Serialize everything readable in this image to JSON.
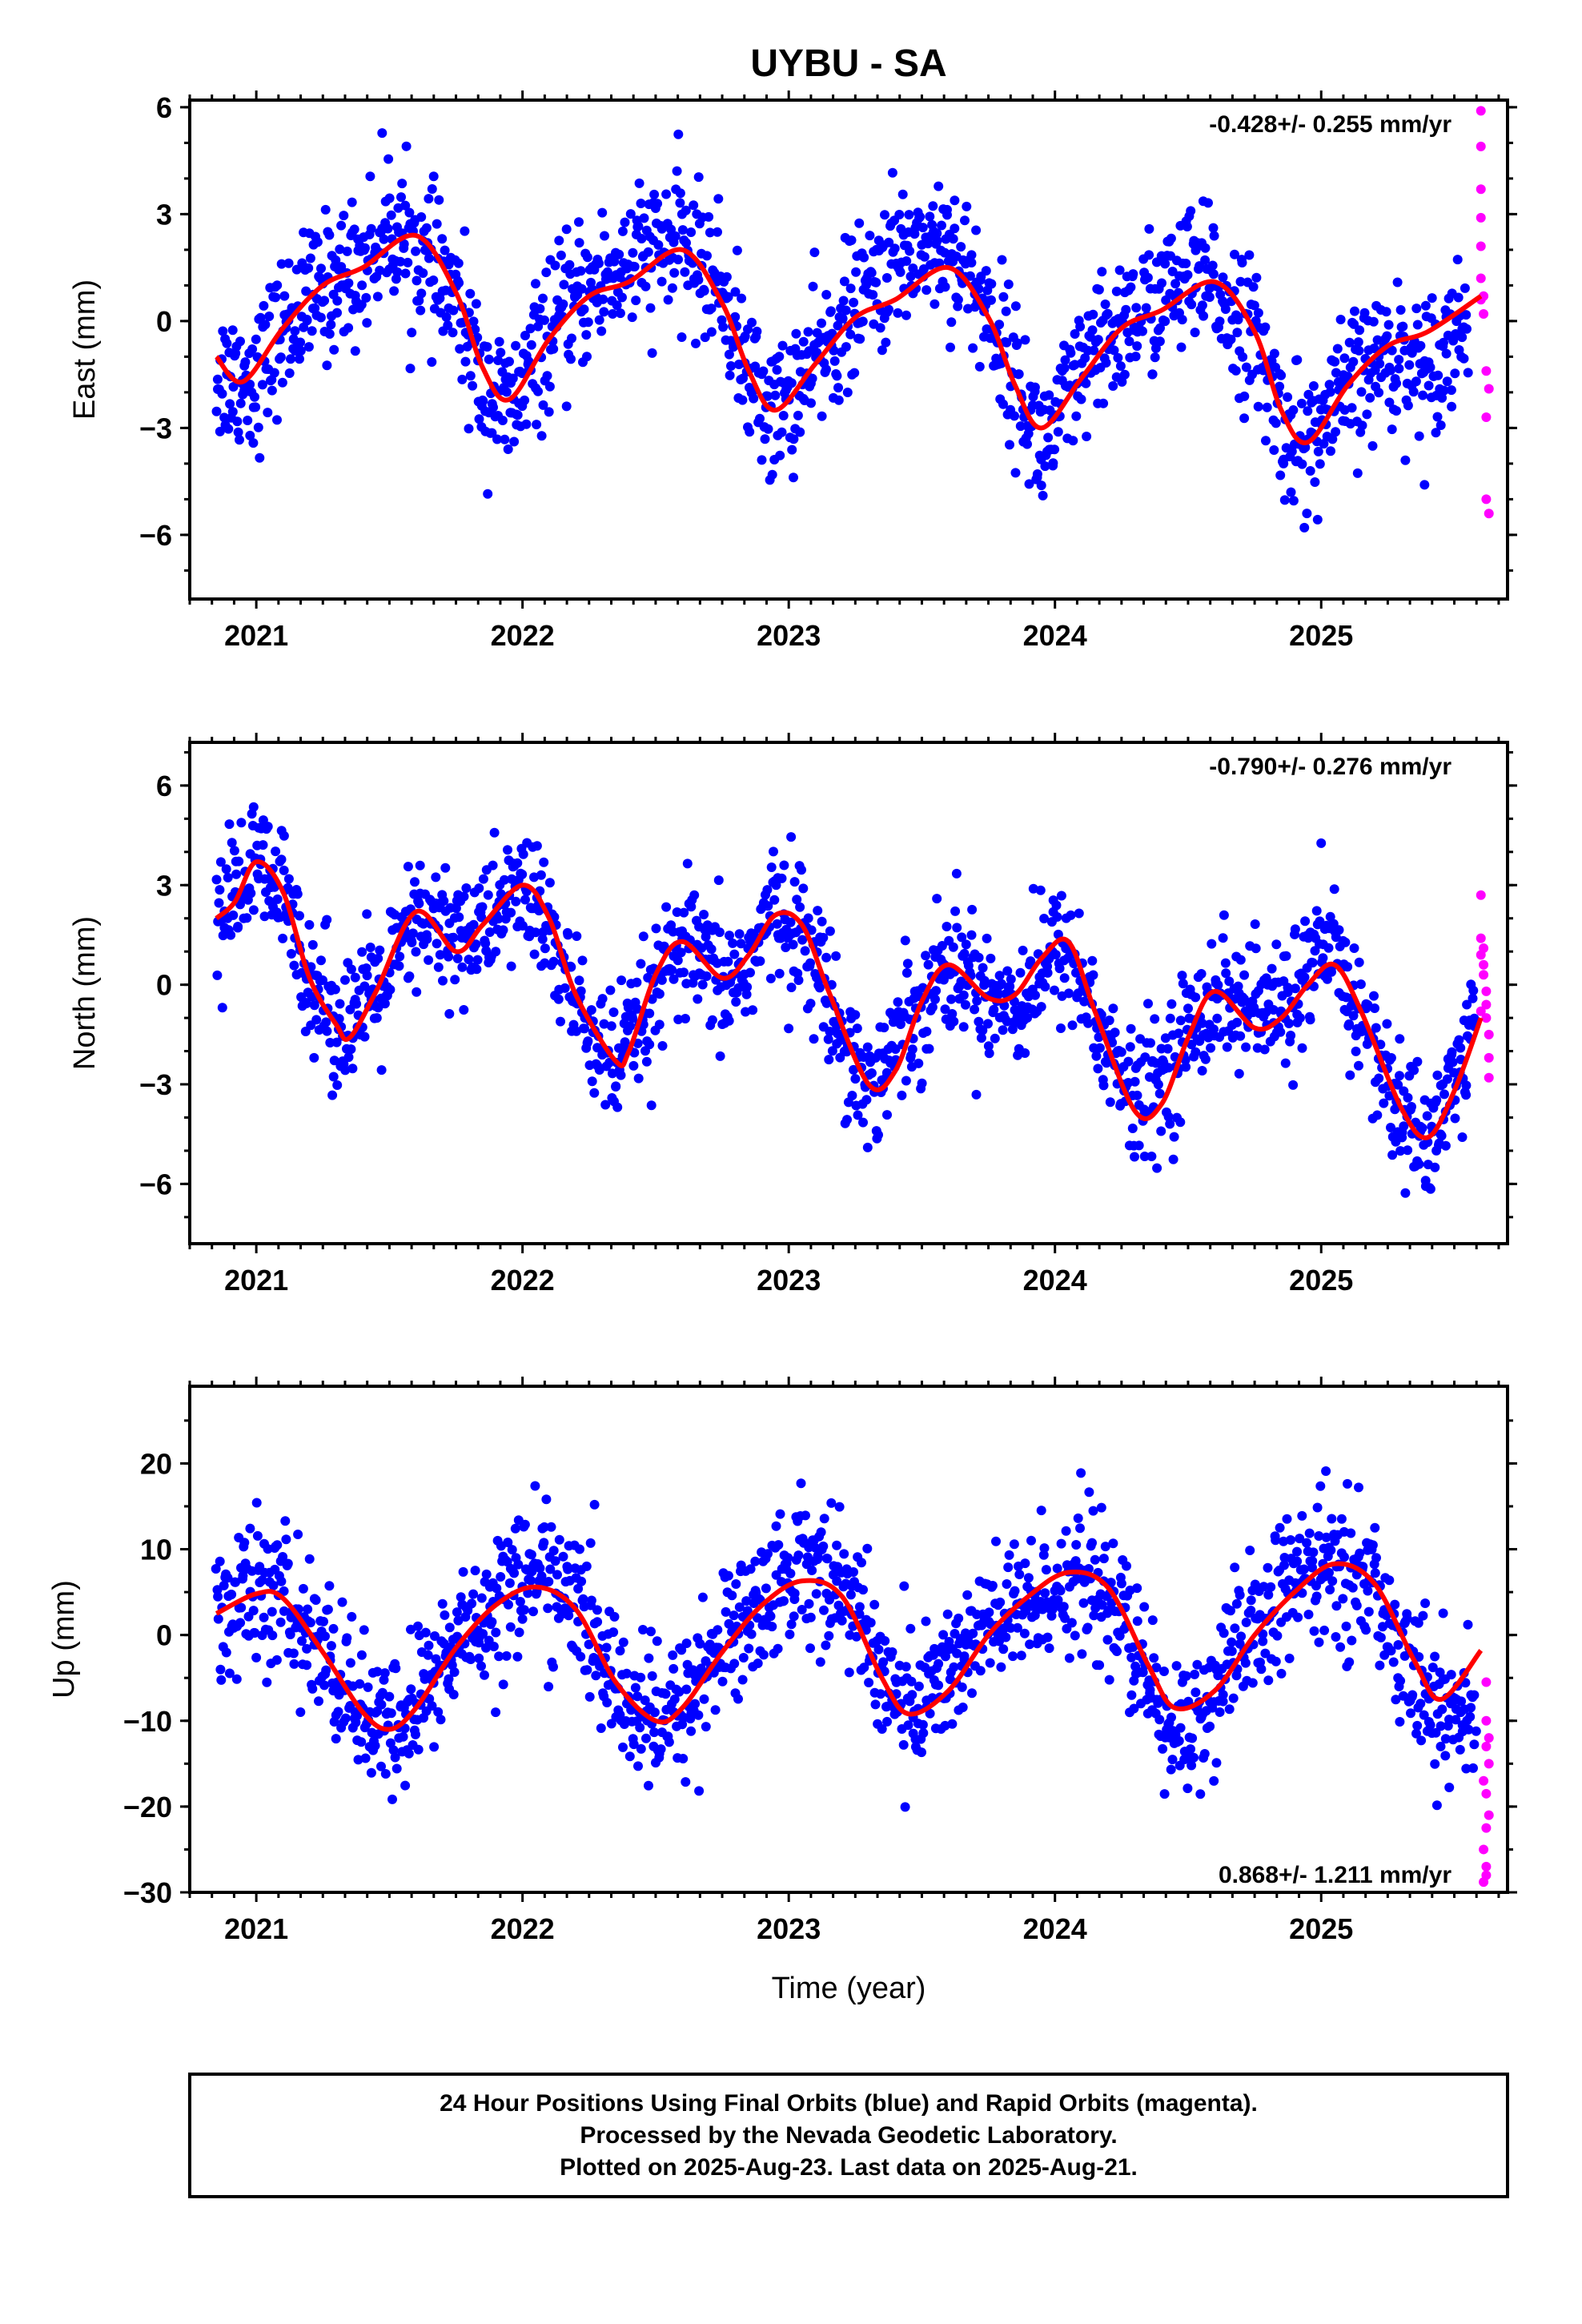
{
  "title": "UYBU - SA",
  "xlabel": "Time (year)",
  "footer": {
    "line1": "24 Hour Positions Using Final Orbits (blue) and Rapid Orbits (magenta).",
    "line2": "Processed by the Nevada Geodetic Laboratory.",
    "line3": "Plotted on 2025-Aug-23. Last data on 2025-Aug-21."
  },
  "colors": {
    "final": "#0000ff",
    "rapid": "#ff00ff",
    "fit": "#ff0000",
    "frame": "#000000"
  },
  "chart_data": [
    {
      "type": "scatter",
      "name": "East",
      "ylabel": "East (mm)",
      "rate_text": "-0.428+/- 0.255 mm/yr",
      "rate_position": "top-right",
      "xlim": [
        2020.75,
        2025.7
      ],
      "ylim": [
        -7.8,
        6.2
      ],
      "xticks": [
        2021,
        2022,
        2023,
        2024,
        2025
      ],
      "yticks": [
        -6,
        -3,
        0,
        3,
        6
      ],
      "ytick_labels": [
        "−6",
        "−3",
        "0",
        "3",
        "6"
      ],
      "fit_curve": {
        "x": [
          2020.85,
          2020.95,
          2021.1,
          2021.25,
          2021.4,
          2021.6,
          2021.75,
          2021.85,
          2021.95,
          2022.1,
          2022.25,
          2022.4,
          2022.6,
          2022.75,
          2022.85,
          2022.95,
          2023.1,
          2023.25,
          2023.4,
          2023.6,
          2023.75,
          2023.85,
          2023.95,
          2024.1,
          2024.25,
          2024.4,
          2024.6,
          2024.75,
          2024.85,
          2024.95,
          2025.1,
          2025.25,
          2025.4,
          2025.6
        ],
        "y": [
          -1.0,
          -1.7,
          -0.2,
          1.0,
          1.5,
          2.4,
          0.8,
          -1.3,
          -2.2,
          -0.5,
          0.7,
          1.1,
          2.0,
          0.5,
          -1.4,
          -2.5,
          -1.2,
          0.1,
          0.6,
          1.5,
          0.1,
          -1.8,
          -3.0,
          -1.6,
          -0.2,
          0.3,
          1.1,
          -0.3,
          -2.5,
          -3.4,
          -1.8,
          -0.7,
          -0.3,
          0.7
        ]
      },
      "final_trend": [
        [
          2020.85,
          -1.5
        ],
        [
          2021.0,
          -1.6
        ],
        [
          2021.1,
          -0.2
        ],
        [
          2021.25,
          0.9
        ],
        [
          2021.4,
          1.6
        ],
        [
          2021.5,
          2.7
        ],
        [
          2021.6,
          2.0
        ],
        [
          2021.75,
          0.5
        ],
        [
          2021.85,
          -1.8
        ],
        [
          2021.95,
          -2.6
        ],
        [
          2022.1,
          -0.4
        ],
        [
          2022.25,
          0.9
        ],
        [
          2022.4,
          1.6
        ],
        [
          2022.5,
          2.0
        ],
        [
          2022.6,
          2.2
        ],
        [
          2022.75,
          0.9
        ],
        [
          2022.85,
          -1.6
        ],
        [
          2022.95,
          -2.6
        ],
        [
          2023.1,
          -1.2
        ],
        [
          2023.25,
          0.4
        ],
        [
          2023.4,
          1.7
        ],
        [
          2023.5,
          2.2
        ],
        [
          2023.6,
          2.2
        ],
        [
          2023.75,
          0.3
        ],
        [
          2023.85,
          -1.6
        ],
        [
          2023.95,
          -3.6
        ],
        [
          2024.1,
          -1.6
        ],
        [
          2024.25,
          -0.1
        ],
        [
          2024.4,
          0.7
        ],
        [
          2024.5,
          1.2
        ],
        [
          2024.6,
          1.0
        ],
        [
          2024.75,
          -0.5
        ],
        [
          2024.85,
          -2.8
        ],
        [
          2024.95,
          -3.6
        ],
        [
          2025.1,
          -1.9
        ],
        [
          2025.25,
          -0.9
        ],
        [
          2025.4,
          -1.3
        ],
        [
          2025.55,
          0.2
        ]
      ],
      "final_scatter": 1.0,
      "rapid_points": [
        [
          2025.6,
          5.9
        ],
        [
          2025.6,
          4.9
        ],
        [
          2025.6,
          3.7
        ],
        [
          2025.6,
          2.9
        ],
        [
          2025.6,
          2.1
        ],
        [
          2025.6,
          1.2
        ],
        [
          2025.61,
          0.7
        ],
        [
          2025.61,
          0.2
        ],
        [
          2025.62,
          -1.4
        ],
        [
          2025.62,
          -2.7
        ],
        [
          2025.62,
          -5.0
        ],
        [
          2025.63,
          -5.4
        ],
        [
          2025.63,
          -1.9
        ],
        [
          2025.6,
          0.6
        ]
      ]
    },
    {
      "type": "scatter",
      "name": "North",
      "ylabel": "North (mm)",
      "rate_text": "-0.790+/- 0.276 mm/yr",
      "rate_position": "top-right",
      "xlim": [
        2020.75,
        2025.7
      ],
      "ylim": [
        -7.8,
        7.3
      ],
      "xticks": [
        2021,
        2022,
        2023,
        2024,
        2025
      ],
      "yticks": [
        -6,
        -3,
        0,
        3,
        6
      ],
      "ytick_labels": [
        "−6",
        "−3",
        "0",
        "3",
        "6"
      ],
      "fit_curve": {
        "x": [
          2020.85,
          2020.92,
          2021.0,
          2021.1,
          2021.2,
          2021.3,
          2021.35,
          2021.45,
          2021.6,
          2021.75,
          2021.85,
          2022.0,
          2022.1,
          2022.2,
          2022.35,
          2022.4,
          2022.5,
          2022.6,
          2022.75,
          2022.85,
          2022.95,
          2023.05,
          2023.15,
          2023.3,
          2023.4,
          2023.5,
          2023.6,
          2023.75,
          2023.85,
          2023.95,
          2024.05,
          2024.15,
          2024.3,
          2024.4,
          2024.5,
          2024.6,
          2024.75,
          2024.85,
          2024.95,
          2025.05,
          2025.15,
          2025.3,
          2025.4,
          2025.5,
          2025.6
        ],
        "y": [
          2.0,
          2.5,
          3.7,
          2.8,
          0.2,
          -1.2,
          -1.6,
          -0.2,
          2.2,
          1.0,
          1.8,
          3.0,
          2.0,
          -0.3,
          -2.3,
          -2.0,
          0.3,
          1.3,
          0.2,
          0.9,
          2.1,
          1.8,
          -0.2,
          -3.0,
          -2.6,
          -0.5,
          0.6,
          -0.4,
          -0.3,
          0.8,
          1.3,
          -0.8,
          -3.8,
          -3.6,
          -1.6,
          -0.2,
          -1.3,
          -1.0,
          0.0,
          0.6,
          -0.8,
          -3.7,
          -4.6,
          -3.2,
          -1.0
        ]
      },
      "final_trend": [
        [
          2020.85,
          2.0
        ],
        [
          2021.0,
          3.6
        ],
        [
          2021.1,
          2.6
        ],
        [
          2021.2,
          0.4
        ],
        [
          2021.3,
          -1.2
        ],
        [
          2021.45,
          -0.4
        ],
        [
          2021.6,
          1.8
        ],
        [
          2021.75,
          1.5
        ],
        [
          2021.85,
          1.7
        ],
        [
          2022.0,
          3.0
        ],
        [
          2022.1,
          1.6
        ],
        [
          2022.2,
          -0.6
        ],
        [
          2022.35,
          -2.6
        ],
        [
          2022.5,
          -0.4
        ],
        [
          2022.6,
          1.2
        ],
        [
          2022.75,
          -0.1
        ],
        [
          2022.85,
          0.7
        ],
        [
          2022.95,
          2.3
        ],
        [
          2023.05,
          1.7
        ],
        [
          2023.15,
          -0.4
        ],
        [
          2023.3,
          -3.2
        ],
        [
          2023.45,
          -1.0
        ],
        [
          2023.6,
          0.7
        ],
        [
          2023.75,
          -0.2
        ],
        [
          2023.85,
          -0.6
        ],
        [
          2023.95,
          0.5
        ],
        [
          2024.05,
          1.2
        ],
        [
          2024.15,
          -1.0
        ],
        [
          2024.3,
          -3.7
        ],
        [
          2024.45,
          -2.2
        ],
        [
          2024.6,
          -0.2
        ],
        [
          2024.75,
          -0.8
        ],
        [
          2024.85,
          -0.8
        ],
        [
          2024.95,
          0.5
        ],
        [
          2025.05,
          0.9
        ],
        [
          2025.15,
          -1.0
        ],
        [
          2025.3,
          -4.0
        ],
        [
          2025.4,
          -4.6
        ],
        [
          2025.5,
          -3.0
        ],
        [
          2025.58,
          -1.1
        ]
      ],
      "final_scatter": 1.0,
      "rapid_points": [
        [
          2025.6,
          2.7
        ],
        [
          2025.6,
          1.4
        ],
        [
          2025.61,
          1.1
        ],
        [
          2025.61,
          0.6
        ],
        [
          2025.61,
          0.3
        ],
        [
          2025.62,
          -0.2
        ],
        [
          2025.62,
          -0.6
        ],
        [
          2025.62,
          -1.0
        ],
        [
          2025.63,
          -1.5
        ],
        [
          2025.63,
          -2.2
        ],
        [
          2025.63,
          -2.8
        ],
        [
          2025.6,
          -0.8
        ],
        [
          2025.6,
          0.9
        ]
      ]
    },
    {
      "type": "scatter",
      "name": "Up",
      "ylabel": "Up (mm)",
      "rate_text": "0.868+/- 1.211 mm/yr",
      "rate_position": "bottom-right",
      "xlim": [
        2020.75,
        2025.7
      ],
      "ylim": [
        -30,
        29
      ],
      "xticks": [
        2021,
        2022,
        2023,
        2024,
        2025
      ],
      "yticks": [
        -30,
        -20,
        -10,
        0,
        10,
        20
      ],
      "ytick_labels": [
        "−30",
        "−20",
        "−10",
        "0",
        "10",
        "20"
      ],
      "fit_curve": {
        "x": [
          2020.85,
          2021.0,
          2021.1,
          2021.25,
          2021.4,
          2021.5,
          2021.6,
          2021.75,
          2021.9,
          2022.05,
          2022.2,
          2022.35,
          2022.5,
          2022.6,
          2022.75,
          2022.9,
          2023.05,
          2023.2,
          2023.35,
          2023.45,
          2023.6,
          2023.75,
          2023.9,
          2024.05,
          2024.2,
          2024.35,
          2024.45,
          2024.6,
          2024.75,
          2024.9,
          2025.05,
          2025.2,
          2025.35,
          2025.45,
          2025.6
        ],
        "y": [
          2.5,
          4.8,
          4.3,
          -2.0,
          -9.0,
          -11.0,
          -8.5,
          -1.5,
          3.5,
          5.6,
          3.0,
          -5.5,
          -10.0,
          -8.5,
          -2.0,
          3.5,
          6.3,
          4.5,
          -5.0,
          -9.2,
          -6.5,
          0.0,
          4.5,
          7.3,
          5.5,
          -3.5,
          -8.5,
          -6.5,
          0.0,
          5.0,
          8.3,
          6.0,
          -3.0,
          -7.5,
          -1.8
        ]
      },
      "final_trend": [
        [
          2020.85,
          3.0
        ],
        [
          2021.0,
          5.0
        ],
        [
          2021.1,
          4.0
        ],
        [
          2021.25,
          -2.0
        ],
        [
          2021.4,
          -9.0
        ],
        [
          2021.5,
          -12.0
        ],
        [
          2021.6,
          -8.0
        ],
        [
          2021.75,
          -1.0
        ],
        [
          2021.9,
          4.0
        ],
        [
          2022.05,
          8.0
        ],
        [
          2022.2,
          4.0
        ],
        [
          2022.35,
          -6.0
        ],
        [
          2022.5,
          -11.0
        ],
        [
          2022.6,
          -8.0
        ],
        [
          2022.75,
          -1.0
        ],
        [
          2022.9,
          4.0
        ],
        [
          2023.05,
          9.0
        ],
        [
          2023.2,
          6.0
        ],
        [
          2023.35,
          -4.0
        ],
        [
          2023.45,
          -9.0
        ],
        [
          2023.6,
          -4.0
        ],
        [
          2023.75,
          1.0
        ],
        [
          2023.9,
          3.0
        ],
        [
          2024.05,
          7.0
        ],
        [
          2024.2,
          5.0
        ],
        [
          2024.35,
          -6.0
        ],
        [
          2024.45,
          -12.0
        ],
        [
          2024.6,
          -7.0
        ],
        [
          2024.75,
          1.0
        ],
        [
          2024.9,
          6.0
        ],
        [
          2025.05,
          9.0
        ],
        [
          2025.2,
          5.0
        ],
        [
          2025.35,
          -4.0
        ],
        [
          2025.45,
          -9.0
        ],
        [
          2025.58,
          -10.0
        ]
      ],
      "final_scatter": 4.2,
      "rapid_points": [
        [
          2025.62,
          -5.5
        ],
        [
          2025.62,
          -10.0
        ],
        [
          2025.62,
          -13.0
        ],
        [
          2025.63,
          -15.0
        ],
        [
          2025.61,
          -17.0
        ],
        [
          2025.62,
          -18.5
        ],
        [
          2025.63,
          -21.0
        ],
        [
          2025.62,
          -22.5
        ],
        [
          2025.61,
          -25.0
        ],
        [
          2025.62,
          -27.0
        ],
        [
          2025.62,
          -28.0
        ],
        [
          2025.61,
          -28.8
        ],
        [
          2025.63,
          -12.0
        ]
      ]
    }
  ]
}
